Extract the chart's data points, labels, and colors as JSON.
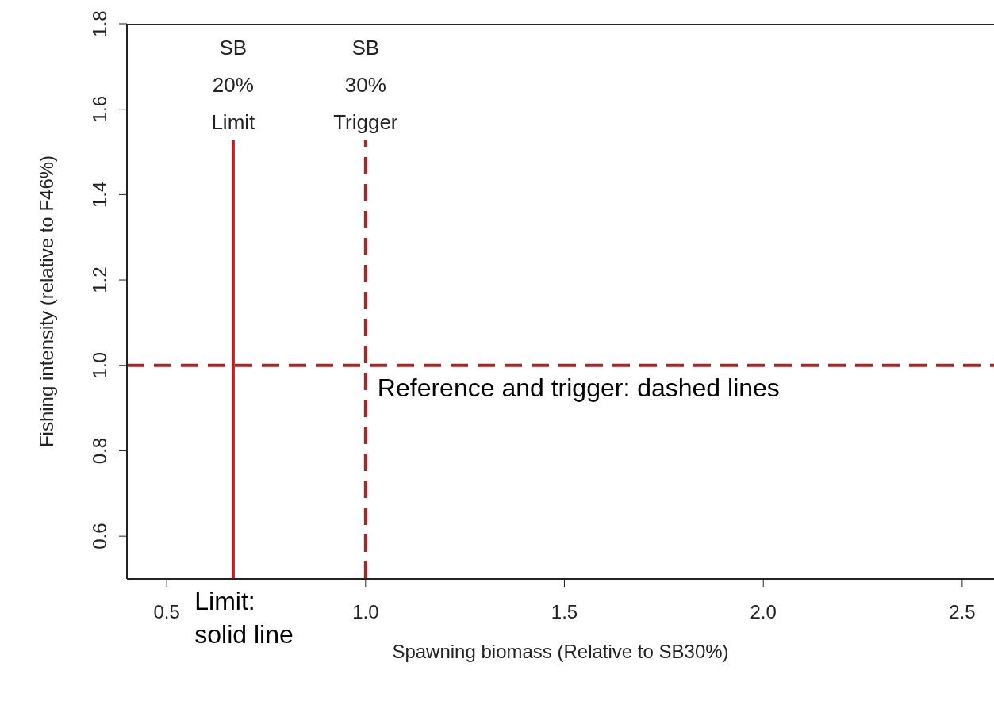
{
  "chart_data": {
    "type": "line",
    "xlabel": "Spawning biomass (Relative to SB30%)",
    "ylabel": "Fishing intensity (relative to F46%)",
    "xlim": [
      0.4,
      2.58
    ],
    "xticks": [
      0.5,
      {
        "value": 1,
        "label": "1.0"
      },
      1.5,
      {
        "value": 2,
        "label": "2.0"
      },
      2.5
    ],
    "ylim": [
      0.5,
      1.8
    ],
    "yticks": [
      0.6,
      0.8,
      {
        "value": 1,
        "label": "1.0"
      },
      1.2,
      1.4,
      1.6,
      1.8
    ],
    "ref_lines": [
      {
        "axis": "x",
        "value": 0.667,
        "label": "SB\n20%\nLimit",
        "color": "#b22222",
        "line_style": "solid"
      },
      {
        "axis": "x",
        "value": 1.0,
        "label": "SB\n30%\nTrigger",
        "color": "#b22222",
        "line_style": "dashed"
      },
      {
        "axis": "y",
        "value": 1.0,
        "color": "#b22222",
        "line_style": "dashed"
      }
    ],
    "annotations": [
      "Reference and trigger: dashed lines",
      "Limit:\nsolid line"
    ]
  }
}
